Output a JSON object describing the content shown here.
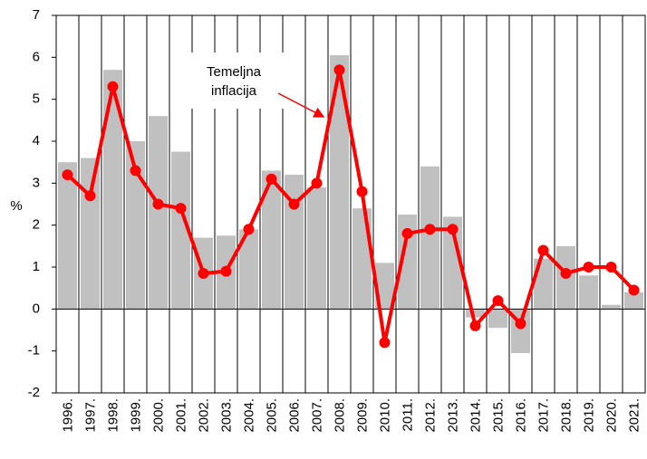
{
  "chart_data": {
    "type": "bar-line",
    "y_label": "%",
    "annotation": [
      "Temeljna",
      "inflacija"
    ],
    "categories": [
      "1996.",
      "1997.",
      "1998.",
      "1999.",
      "2000.",
      "2001.",
      "2002.",
      "2003.",
      "2004.",
      "2005.",
      "2006.",
      "2007.",
      "2008.",
      "2009.",
      "2010.",
      "2011.",
      "2012.",
      "2013.",
      "2014.",
      "2015.",
      "2016.",
      "2017.",
      "2018.",
      "2019.",
      "2020.",
      "2021."
    ],
    "series": [
      {
        "type": "bar",
        "color": "#c0c0c0",
        "values": [
          3.5,
          3.6,
          5.7,
          4.0,
          4.6,
          3.75,
          1.7,
          1.75,
          1.9,
          3.3,
          3.2,
          2.9,
          6.05,
          2.4,
          1.1,
          2.25,
          3.4,
          2.2,
          -0.2,
          -0.45,
          -1.05,
          1.2,
          1.5,
          0.8,
          0.1,
          0.4
        ]
      },
      {
        "type": "line",
        "color": "#ff0000",
        "values": [
          3.2,
          2.7,
          5.3,
          3.3,
          2.5,
          2.4,
          0.85,
          0.9,
          1.9,
          3.1,
          2.5,
          3.0,
          5.7,
          2.8,
          -0.8,
          1.8,
          1.9,
          1.9,
          -0.4,
          0.2,
          -0.35,
          1.4,
          0.85,
          1.0,
          1.0,
          0.45
        ]
      }
    ],
    "ylim": [
      -2,
      7
    ],
    "yticks": [
      -2,
      -1,
      0,
      1,
      2,
      3,
      4,
      5,
      6,
      7
    ]
  }
}
